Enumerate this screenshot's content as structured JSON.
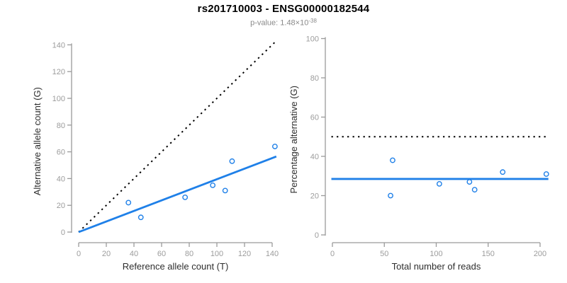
{
  "header": {
    "title": "rs201710003 - ENSG00000182544",
    "pvalue_prefix": "p-value: 1.48×10",
    "pvalue_exponent": "-38"
  },
  "colors": {
    "accent_blue": "#1f80e8",
    "dotted_line": "#000000",
    "axis_line": "#9a9a9a",
    "tick_label": "#9c9c9c",
    "axis_title": "#2e2e2e",
    "title_text": "#000000",
    "subtitle_text": "#8a8a8a",
    "background": "#ffffff"
  },
  "chart_data": [
    {
      "type": "scatter",
      "name": "allele-counts",
      "title": "",
      "xlabel": "Reference allele count (T)",
      "ylabel": "Alternative allele count (G)",
      "xlim": [
        0,
        140
      ],
      "ylim": [
        0,
        140
      ],
      "xticks": [
        0,
        20,
        40,
        60,
        80,
        100,
        120,
        140
      ],
      "yticks": [
        0,
        20,
        40,
        60,
        80,
        100,
        120,
        140
      ],
      "grid": false,
      "legend": "none",
      "points": [
        [
          36,
          22
        ],
        [
          45,
          11
        ],
        [
          77,
          26
        ],
        [
          97,
          35
        ],
        [
          106,
          31
        ],
        [
          111,
          53
        ],
        [
          142,
          64
        ]
      ],
      "lines": [
        {
          "name": "identity-dotted-line",
          "style": "dotted",
          "color_key": "dotted_line",
          "from": [
            0,
            0
          ],
          "to": [
            143,
            143
          ]
        },
        {
          "name": "regression-line",
          "style": "solid",
          "color_key": "accent_blue",
          "from": [
            0,
            0
          ],
          "to": [
            143,
            56.5
          ]
        }
      ]
    },
    {
      "type": "scatter",
      "name": "percentage-vs-coverage",
      "title": "",
      "xlabel": "Total number of reads",
      "ylabel": "Percentage alternative (G)",
      "xlim": [
        0,
        200
      ],
      "ylim": [
        0,
        100
      ],
      "xticks": [
        0,
        50,
        100,
        150,
        200
      ],
      "yticks": [
        0,
        20,
        40,
        60,
        80,
        100
      ],
      "grid": false,
      "legend": "none",
      "points": [
        [
          58,
          38
        ],
        [
          56,
          20
        ],
        [
          103,
          26
        ],
        [
          132,
          27
        ],
        [
          137,
          23
        ],
        [
          164,
          32
        ],
        [
          206,
          31
        ]
      ],
      "lines": [
        {
          "name": "fifty-percent-dotted-line",
          "style": "dotted",
          "color_key": "dotted_line",
          "from": [
            -1,
            50
          ],
          "to": [
            208,
            50
          ]
        },
        {
          "name": "mean-percentage-line",
          "style": "solid",
          "color_key": "accent_blue",
          "from": [
            -1,
            28.5
          ],
          "to": [
            208,
            28.5
          ]
        }
      ]
    }
  ]
}
